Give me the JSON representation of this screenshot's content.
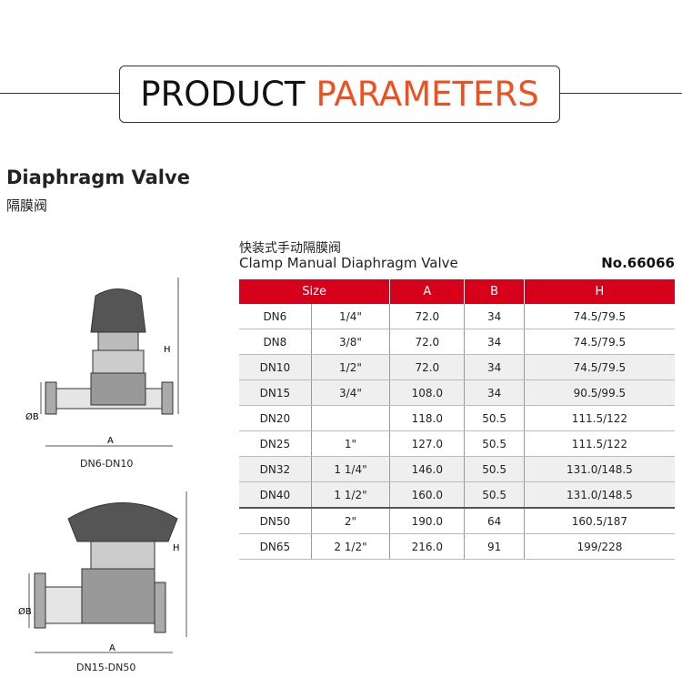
{
  "header": {
    "title_part1": "PRODUCT",
    "title_part2": "PARAMETERS",
    "accent": "#f0501e"
  },
  "product": {
    "name": "Diaphragm Valve",
    "name_cn": "隔膜阀"
  },
  "table_block": {
    "subtitle_cn": "快装式手动隔膜阀",
    "subtitle": "Clamp Manual Diaphragm Valve",
    "model_no": "No.66066",
    "header_color": "#d7001b",
    "columns": [
      "Size",
      "A",
      "B",
      "H"
    ],
    "rows": [
      [
        "DN6",
        "1/4\"",
        "72.0",
        "34",
        "74.5/79.5"
      ],
      [
        "DN8",
        "3/8\"",
        "72.0",
        "34",
        "74.5/79.5"
      ],
      [
        "DN10",
        "1/2\"",
        "72.0",
        "34",
        "74.5/79.5"
      ],
      [
        "DN15",
        "3/4\"",
        "108.0",
        "34",
        "90.5/99.5"
      ],
      [
        "DN20",
        "",
        "118.0",
        "50.5",
        "111.5/122"
      ],
      [
        "DN25",
        "1\"",
        "127.0",
        "50.5",
        "111.5/122"
      ],
      [
        "DN32",
        "1 1/4\"",
        "146.0",
        "50.5",
        "131.0/148.5"
      ],
      [
        "DN40",
        "1 1/2\"",
        "160.0",
        "50.5",
        "131.0/148.5"
      ],
      [
        "DN50",
        "2\"",
        "190.0",
        "64",
        "160.5/187"
      ],
      [
        "DN65",
        "2 1/2\"",
        "216.0",
        "91",
        "199/228"
      ]
    ]
  },
  "diagrams": [
    {
      "caption": "DN6-DN10",
      "label_a": "A",
      "label_b": "ØB",
      "label_h": "H"
    },
    {
      "caption": "DN15-DN50",
      "label_a": "A",
      "label_b": "ØB",
      "label_h": "H"
    }
  ]
}
